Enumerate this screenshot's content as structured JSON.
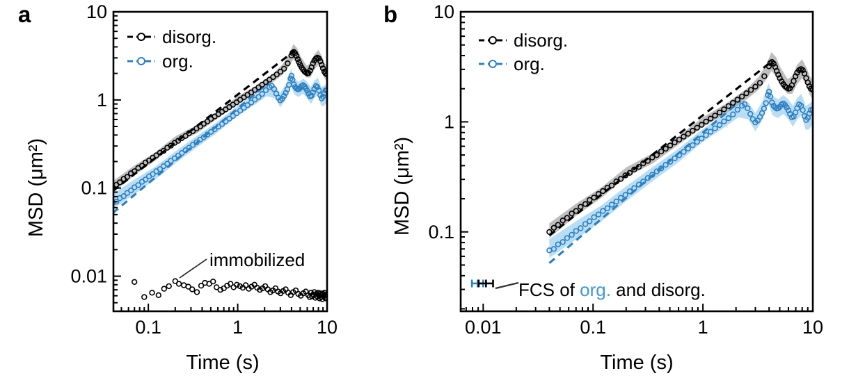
{
  "figure": {
    "background": "#ffffff"
  },
  "panel_letters": [
    "a",
    "b"
  ],
  "colors": {
    "black": "#000000",
    "blue": "#2e7fc0",
    "gray_band": "rgba(125,125,125,0.50)",
    "blue_band": "rgba(100,180,230,0.45)",
    "annotation_blue": "#3f97d4",
    "leader_line": "#333333"
  },
  "chart_data": [
    {
      "id": "a",
      "type": "scatter",
      "xscale": "log",
      "yscale": "log",
      "xlabel": "Time (s)",
      "ylabel": "MSD (μm²)",
      "xlim": [
        0.0407,
        10
      ],
      "ylim": [
        0.004,
        10
      ],
      "grid": false,
      "legend_position": "top-left-inside",
      "x_ticks": {
        "values": [
          0.1,
          1,
          10
        ],
        "labels": [
          "0.1",
          "1",
          "10"
        ]
      },
      "y_ticks": {
        "values": [
          10,
          1,
          0.1,
          0.01
        ],
        "labels": [
          "10",
          "1",
          "0.1",
          "0.01"
        ]
      },
      "legend": [
        {
          "label": "disorg.",
          "color": "black"
        },
        {
          "label": "org.",
          "color": "blue"
        }
      ],
      "annotation": {
        "text": "immobilized"
      },
      "series": [
        {
          "name": "disorg-band",
          "kind": "band",
          "color": "gray_band",
          "data": "disorg_band"
        },
        {
          "name": "org-band",
          "kind": "band",
          "color": "blue_band",
          "data": "org_band"
        },
        {
          "name": "disorg-fit",
          "kind": "fit",
          "color": "black",
          "data": "disorg_fit"
        },
        {
          "name": "org-fit",
          "kind": "fit",
          "color": "blue",
          "data": "org_fit"
        },
        {
          "name": "disorg-points",
          "kind": "points",
          "color": "black",
          "data": "disorg"
        },
        {
          "name": "org-points",
          "kind": "points",
          "color": "blue",
          "data": "org"
        },
        {
          "name": "immobilized-points",
          "kind": "points",
          "color": "black",
          "data": "immobilized"
        }
      ]
    },
    {
      "id": "b",
      "type": "scatter",
      "xscale": "log",
      "yscale": "log",
      "xlabel": "Time (s)",
      "ylabel": "MSD (μm²)",
      "xlim": [
        0.00624,
        10
      ],
      "ylim": [
        0.019,
        10
      ],
      "grid": false,
      "legend_position": "top-left-inside",
      "x_ticks": {
        "values": [
          0.01,
          0.1,
          1,
          10
        ],
        "labels": [
          "0.01",
          "0.1",
          "1",
          "10"
        ]
      },
      "y_ticks": {
        "values": [
          10,
          1,
          0.1
        ],
        "labels": [
          "10",
          "1",
          "0.1"
        ]
      },
      "legend": [
        {
          "label": "disorg.",
          "color": "black"
        },
        {
          "label": "org.",
          "color": "blue"
        }
      ],
      "annotation": {
        "pre": "FCS of ",
        "org": "org.",
        "post": " and disorg."
      },
      "series": [
        {
          "name": "disorg-band",
          "kind": "band",
          "color": "gray_band",
          "data": "disorg_band"
        },
        {
          "name": "org-band",
          "kind": "band",
          "color": "blue_band",
          "data": "org_band"
        },
        {
          "name": "disorg-fit",
          "kind": "fit",
          "color": "black",
          "data": "disorg_fit"
        },
        {
          "name": "org-fit",
          "kind": "fit",
          "color": "blue",
          "data": "org_fit"
        },
        {
          "name": "disorg-points",
          "kind": "points",
          "color": "black",
          "data": "disorg"
        },
        {
          "name": "org-points",
          "kind": "points",
          "color": "blue",
          "data": "org"
        },
        {
          "name": "fcs-markers",
          "kind": "errbarx",
          "data": "fcs"
        }
      ]
    }
  ],
  "series_data": {
    "disorg": [
      [
        0.04,
        0.1
      ],
      [
        0.044,
        0.109
      ],
      [
        0.048,
        0.116
      ],
      [
        0.053,
        0.127
      ],
      [
        0.058,
        0.134
      ],
      [
        0.064,
        0.147
      ],
      [
        0.07,
        0.155
      ],
      [
        0.077,
        0.169
      ],
      [
        0.085,
        0.179
      ],
      [
        0.093,
        0.195
      ],
      [
        0.102,
        0.205
      ],
      [
        0.112,
        0.221
      ],
      [
        0.123,
        0.235
      ],
      [
        0.135,
        0.252
      ],
      [
        0.148,
        0.264
      ],
      [
        0.163,
        0.287
      ],
      [
        0.179,
        0.303
      ],
      [
        0.197,
        0.326
      ],
      [
        0.216,
        0.344
      ],
      [
        0.237,
        0.369
      ],
      [
        0.261,
        0.39
      ],
      [
        0.286,
        0.42
      ],
      [
        0.315,
        0.442
      ],
      [
        0.346,
        0.475
      ],
      [
        0.38,
        0.5
      ],
      [
        0.417,
        0.538
      ],
      [
        0.458,
        0.57
      ],
      [
        0.503,
        0.61
      ],
      [
        0.553,
        0.65
      ],
      [
        0.608,
        0.69
      ],
      [
        0.668,
        0.735
      ],
      [
        0.733,
        0.78
      ],
      [
        0.806,
        0.83
      ],
      [
        0.885,
        0.885
      ],
      [
        0.972,
        0.94
      ],
      [
        1.068,
        1.005
      ],
      [
        1.173,
        1.07
      ],
      [
        1.289,
        1.14
      ],
      [
        1.416,
        1.215
      ],
      [
        1.556,
        1.3
      ],
      [
        1.709,
        1.39
      ],
      [
        1.878,
        1.49
      ],
      [
        2.063,
        1.59
      ],
      [
        2.266,
        1.7
      ],
      [
        2.489,
        1.82
      ],
      [
        2.734,
        1.95
      ],
      [
        3.004,
        2.09
      ],
      [
        3.3,
        2.26
      ],
      [
        3.626,
        2.6
      ],
      [
        3.983,
        3.2
      ],
      [
        4.1,
        3.42
      ],
      [
        4.25,
        3.5
      ],
      [
        4.4,
        3.38
      ],
      [
        4.55,
        3.15
      ],
      [
        4.7,
        2.9
      ],
      [
        4.85,
        2.68
      ],
      [
        5.0,
        2.5
      ],
      [
        5.2,
        2.33
      ],
      [
        5.4,
        2.2
      ],
      [
        5.6,
        2.1
      ],
      [
        5.8,
        2.05
      ],
      [
        6.0,
        2.0
      ],
      [
        6.2,
        2.02
      ],
      [
        6.45,
        2.15
      ],
      [
        6.7,
        2.35
      ],
      [
        6.95,
        2.6
      ],
      [
        7.2,
        2.8
      ],
      [
        7.5,
        2.95
      ],
      [
        7.8,
        3.02
      ],
      [
        8.1,
        2.95
      ],
      [
        8.4,
        2.75
      ],
      [
        8.7,
        2.5
      ],
      [
        9.0,
        2.28
      ],
      [
        9.3,
        2.1
      ],
      [
        9.6,
        2.0
      ],
      [
        10,
        1.95
      ]
    ],
    "org": [
      [
        0.04,
        0.068
      ],
      [
        0.044,
        0.07
      ],
      [
        0.048,
        0.077
      ],
      [
        0.053,
        0.081
      ],
      [
        0.058,
        0.088
      ],
      [
        0.064,
        0.094
      ],
      [
        0.07,
        0.102
      ],
      [
        0.077,
        0.108
      ],
      [
        0.085,
        0.118
      ],
      [
        0.093,
        0.125
      ],
      [
        0.102,
        0.136
      ],
      [
        0.112,
        0.144
      ],
      [
        0.123,
        0.155
      ],
      [
        0.135,
        0.164
      ],
      [
        0.148,
        0.177
      ],
      [
        0.163,
        0.189
      ],
      [
        0.179,
        0.204
      ],
      [
        0.197,
        0.217
      ],
      [
        0.216,
        0.234
      ],
      [
        0.237,
        0.25
      ],
      [
        0.261,
        0.269
      ],
      [
        0.286,
        0.287
      ],
      [
        0.315,
        0.309
      ],
      [
        0.346,
        0.33
      ],
      [
        0.38,
        0.355
      ],
      [
        0.417,
        0.378
      ],
      [
        0.458,
        0.407
      ],
      [
        0.503,
        0.434
      ],
      [
        0.553,
        0.466
      ],
      [
        0.608,
        0.498
      ],
      [
        0.668,
        0.534
      ],
      [
        0.733,
        0.572
      ],
      [
        0.806,
        0.614
      ],
      [
        0.885,
        0.658
      ],
      [
        0.972,
        0.706
      ],
      [
        1.068,
        0.757
      ],
      [
        1.173,
        0.813
      ],
      [
        1.289,
        0.873
      ],
      [
        1.416,
        0.937
      ],
      [
        1.556,
        1.01
      ],
      [
        1.709,
        1.08
      ],
      [
        1.878,
        1.17
      ],
      [
        2.063,
        1.29
      ],
      [
        2.266,
        1.4
      ],
      [
        2.4,
        1.45
      ],
      [
        2.55,
        1.33
      ],
      [
        2.7,
        1.18
      ],
      [
        2.85,
        1.06
      ],
      [
        3.0,
        0.99
      ],
      [
        3.15,
        1.03
      ],
      [
        3.3,
        1.11
      ],
      [
        3.45,
        1.2
      ],
      [
        3.6,
        1.32
      ],
      [
        3.75,
        1.48
      ],
      [
        3.9,
        1.75
      ],
      [
        4.0,
        1.88
      ],
      [
        4.1,
        1.7
      ],
      [
        4.25,
        1.5
      ],
      [
        4.4,
        1.4
      ],
      [
        4.55,
        1.35
      ],
      [
        4.7,
        1.32
      ],
      [
        4.85,
        1.33
      ],
      [
        5.0,
        1.37
      ],
      [
        5.2,
        1.44
      ],
      [
        5.4,
        1.47
      ],
      [
        5.6,
        1.42
      ],
      [
        5.8,
        1.35
      ],
      [
        6.0,
        1.27
      ],
      [
        6.2,
        1.18
      ],
      [
        6.45,
        1.1
      ],
      [
        6.7,
        1.12
      ],
      [
        6.95,
        1.22
      ],
      [
        7.2,
        1.33
      ],
      [
        7.5,
        1.44
      ],
      [
        7.8,
        1.4
      ],
      [
        8.1,
        1.28
      ],
      [
        8.4,
        1.13
      ],
      [
        8.7,
        1.04
      ],
      [
        9.0,
        1.09
      ],
      [
        9.3,
        1.19
      ],
      [
        9.6,
        1.28
      ],
      [
        10,
        1.3
      ]
    ],
    "immobilized": [
      [
        0.07,
        0.0086
      ],
      [
        0.09,
        0.0058
      ],
      [
        0.11,
        0.0065
      ],
      [
        0.13,
        0.0061
      ],
      [
        0.15,
        0.0072
      ],
      [
        0.17,
        0.0077
      ],
      [
        0.2,
        0.0088
      ],
      [
        0.22,
        0.0082
      ],
      [
        0.25,
        0.0079
      ],
      [
        0.28,
        0.0076
      ],
      [
        0.31,
        0.0071
      ],
      [
        0.35,
        0.0066
      ],
      [
        0.39,
        0.0078
      ],
      [
        0.43,
        0.0084
      ],
      [
        0.48,
        0.0082
      ],
      [
        0.53,
        0.0087
      ],
      [
        0.58,
        0.0075
      ],
      [
        0.64,
        0.007
      ],
      [
        0.7,
        0.0073
      ],
      [
        0.76,
        0.0078
      ],
      [
        0.83,
        0.0082
      ],
      [
        0.9,
        0.0075
      ],
      [
        0.98,
        0.008
      ],
      [
        1.06,
        0.0077
      ],
      [
        1.14,
        0.0074
      ],
      [
        1.23,
        0.0079
      ],
      [
        1.33,
        0.0072
      ],
      [
        1.43,
        0.0076
      ],
      [
        1.54,
        0.008
      ],
      [
        1.65,
        0.0074
      ],
      [
        1.77,
        0.007
      ],
      [
        1.9,
        0.0073
      ],
      [
        2.03,
        0.0077
      ],
      [
        2.17,
        0.0071
      ],
      [
        2.32,
        0.0066
      ],
      [
        2.48,
        0.0069
      ],
      [
        2.65,
        0.0073
      ],
      [
        2.83,
        0.0067
      ],
      [
        3.02,
        0.0064
      ],
      [
        3.22,
        0.0068
      ],
      [
        3.44,
        0.0071
      ],
      [
        3.67,
        0.0065
      ],
      [
        3.92,
        0.0061
      ],
      [
        4.18,
        0.0066
      ],
      [
        4.46,
        0.0069
      ],
      [
        4.76,
        0.0063
      ],
      [
        5.08,
        0.006
      ],
      [
        5.42,
        0.0064
      ],
      [
        5.78,
        0.0067
      ],
      [
        6.16,
        0.0061
      ],
      [
        6.4,
        0.0058
      ],
      [
        6.6,
        0.0065
      ],
      [
        6.8,
        0.0059
      ],
      [
        7.0,
        0.0062
      ],
      [
        7.2,
        0.0066
      ],
      [
        7.4,
        0.0057
      ],
      [
        7.6,
        0.0063
      ],
      [
        7.8,
        0.0059
      ],
      [
        7.95,
        0.0065
      ],
      [
        8.1,
        0.0061
      ],
      [
        8.25,
        0.0056
      ],
      [
        8.4,
        0.0064
      ],
      [
        8.55,
        0.0058
      ],
      [
        8.7,
        0.0062
      ],
      [
        8.85,
        0.0055
      ],
      [
        9.0,
        0.0063
      ],
      [
        9.15,
        0.0059
      ],
      [
        9.3,
        0.0065
      ],
      [
        9.45,
        0.0057
      ],
      [
        9.6,
        0.0061
      ],
      [
        9.75,
        0.0056
      ],
      [
        9.9,
        0.0062
      ]
    ],
    "disorg_band": [
      [
        0.04,
        0.088,
        0.12
      ],
      [
        0.07,
        0.14,
        0.18
      ],
      [
        0.12,
        0.205,
        0.255
      ],
      [
        0.2,
        0.315,
        0.385
      ],
      [
        0.35,
        0.42,
        0.52
      ],
      [
        0.6,
        0.62,
        0.74
      ],
      [
        1.0,
        0.9,
        1.1
      ],
      [
        1.6,
        1.18,
        1.45
      ],
      [
        2.5,
        1.6,
        2.0
      ],
      [
        3.2,
        1.95,
        2.55
      ],
      [
        3.8,
        2.45,
        3.4
      ],
      [
        4.2,
        2.9,
        4.3
      ],
      [
        4.6,
        2.6,
        3.9
      ],
      [
        5.1,
        2.1,
        3.1
      ],
      [
        5.9,
        1.8,
        2.45
      ],
      [
        6.5,
        1.8,
        2.6
      ],
      [
        7.2,
        2.2,
        3.3
      ],
      [
        8.0,
        2.5,
        3.7
      ],
      [
        8.8,
        2.1,
        3.1
      ],
      [
        9.4,
        1.75,
        2.6
      ],
      [
        10,
        1.6,
        2.4
      ]
    ],
    "org_band": [
      [
        0.04,
        0.058,
        0.086
      ],
      [
        0.07,
        0.085,
        0.125
      ],
      [
        0.12,
        0.125,
        0.175
      ],
      [
        0.2,
        0.19,
        0.26
      ],
      [
        0.35,
        0.29,
        0.39
      ],
      [
        0.6,
        0.43,
        0.57
      ],
      [
        1.0,
        0.66,
        0.86
      ],
      [
        1.6,
        0.9,
        1.2
      ],
      [
        2.1,
        1.1,
        1.55
      ],
      [
        2.6,
        1.05,
        1.5
      ],
      [
        3.0,
        0.82,
        1.2
      ],
      [
        3.5,
        1.05,
        1.55
      ],
      [
        3.95,
        1.45,
        2.25
      ],
      [
        4.3,
        1.15,
        1.75
      ],
      [
        4.8,
        1.08,
        1.6
      ],
      [
        5.4,
        1.18,
        1.75
      ],
      [
        6.0,
        1.05,
        1.6
      ],
      [
        6.6,
        0.9,
        1.4
      ],
      [
        7.2,
        1.05,
        1.65
      ],
      [
        7.9,
        1.15,
        1.8
      ],
      [
        8.6,
        0.85,
        1.4
      ],
      [
        9.2,
        0.85,
        1.45
      ],
      [
        10,
        0.95,
        1.55
      ]
    ],
    "disorg_fit": [
      [
        0.04,
        0.093
      ],
      [
        4.3,
        3.59
      ]
    ],
    "org_fit": [
      [
        0.04,
        0.052
      ],
      [
        2.2,
        1.56
      ]
    ],
    "fcs": [
      {
        "color": "blue",
        "x": 0.0089,
        "xlo": 0.0079,
        "xhi": 0.01,
        "y": 0.034
      },
      {
        "color": "black",
        "x": 0.0106,
        "xlo": 0.0091,
        "xhi": 0.0123,
        "y": 0.034
      }
    ]
  }
}
